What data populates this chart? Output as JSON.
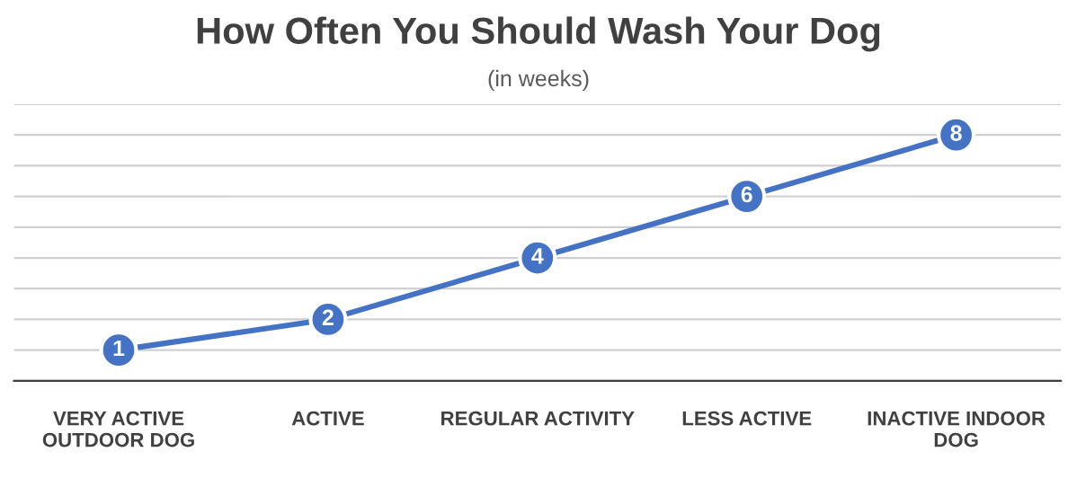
{
  "chart_data": {
    "type": "line",
    "title": "How Often You Should Wash Your Dog",
    "subtitle": "(in weeks)",
    "categories": [
      "VERY ACTIVE\nOUTDOOR DOG",
      "ACTIVE",
      "REGULAR ACTIVITY",
      "LESS ACTIVE",
      "INACTIVE INDOOR\nDOG"
    ],
    "series": [
      {
        "color": "#4472c4",
        "values": [
          1,
          2,
          4,
          6,
          8
        ]
      }
    ],
    "ylim": [
      0,
      9
    ],
    "yticks": [
      {
        "value": 0,
        "label": null
      },
      {
        "value": 1,
        "label": null
      },
      {
        "value": 2,
        "label": null
      },
      {
        "value": 3,
        "label": null
      },
      {
        "value": 4,
        "label": null
      },
      {
        "value": 5,
        "label": null
      },
      {
        "value": 6,
        "label": null
      },
      {
        "value": 7,
        "label": null
      },
      {
        "value": 8,
        "label": null
      },
      {
        "value": 9,
        "label": null
      }
    ],
    "tick_labels": "x",
    "grid": "y",
    "marker": "circle",
    "line_style": "solid",
    "data_labels": true,
    "legend": false
  }
}
